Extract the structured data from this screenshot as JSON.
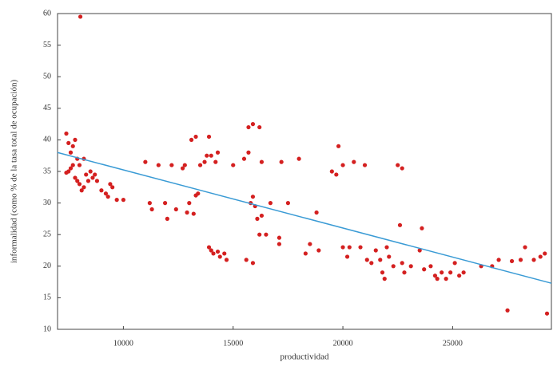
{
  "chart_data": {
    "type": "scatter",
    "x_label": "productividad",
    "y_label": "informalidad (como % de la tasa total de ocupación)",
    "xlim": [
      7000,
      29500
    ],
    "ylim": [
      10,
      60
    ],
    "xticks": [
      10000,
      15000,
      20000,
      25000
    ],
    "yticks": [
      10,
      15,
      20,
      25,
      30,
      35,
      40,
      45,
      50,
      55,
      60
    ],
    "point_color": "#d42020",
    "x": [
      8040,
      7400,
      7500,
      7600,
      7700,
      7800,
      7900,
      7700,
      7500,
      7400,
      7600,
      7800,
      8000,
      8200,
      8400,
      8600,
      8700,
      8500,
      8800,
      8200,
      8000,
      8300,
      9000,
      9200,
      9400,
      9500,
      9300,
      9700,
      10000,
      8100,
      7900,
      11000,
      11200,
      11300,
      11600,
      11900,
      12000,
      12200,
      12400,
      12700,
      12800,
      12900,
      13000,
      13200,
      13300,
      13400,
      13100,
      13300,
      13500,
      13700,
      13800,
      13900,
      14000,
      14200,
      14300,
      13900,
      14000,
      14100,
      14300,
      14400,
      14600,
      14700,
      15000,
      15500,
      15700,
      15700,
      15900,
      16200,
      15600,
      15900,
      15800,
      15900,
      16000,
      16100,
      16300,
      16200,
      16300,
      16500,
      16700,
      17100,
      17100,
      17200,
      17500,
      18000,
      18300,
      18500,
      18800,
      18900,
      19500,
      19700,
      19800,
      20000,
      20000,
      20200,
      20300,
      20500,
      20800,
      21000,
      21100,
      21300,
      21500,
      21700,
      21800,
      21900,
      22000,
      22100,
      22300,
      22500,
      22700,
      22600,
      22700,
      22800,
      23100,
      23500,
      23600,
      23700,
      24000,
      24200,
      24300,
      24500,
      24700,
      24900,
      25100,
      25300,
      25500,
      26300,
      26800,
      27100,
      27500,
      28100,
      28300,
      28700,
      29000,
      29200,
      29300,
      27700
    ],
    "y": [
      59.5,
      41,
      39.5,
      38,
      39,
      40,
      37,
      36,
      35,
      34.8,
      35.5,
      34,
      33,
      32.5,
      33.5,
      34,
      34.5,
      35,
      33.5,
      37,
      36,
      34.5,
      32,
      31.5,
      33,
      32.5,
      31,
      30.5,
      30.5,
      32,
      33.5,
      36.5,
      30,
      29,
      36,
      30,
      27.5,
      36,
      29,
      35.5,
      36,
      28.5,
      30,
      28.3,
      31.2,
      31.5,
      40,
      40.5,
      36,
      36.5,
      37.5,
      40.5,
      37.5,
      36.5,
      38,
      23,
      22.5,
      22,
      22.3,
      21.5,
      22,
      21,
      36,
      37,
      38,
      42,
      42.5,
      42,
      21,
      20.5,
      30,
      31,
      29.5,
      27.5,
      28,
      25,
      36.5,
      25,
      30,
      24.5,
      23.5,
      36.5,
      30,
      37,
      22,
      23.5,
      28.5,
      22.5,
      35,
      34.5,
      39,
      36,
      23,
      21.5,
      23,
      36.5,
      23,
      36,
      21,
      20.5,
      22.5,
      21,
      19,
      18,
      23,
      21.5,
      20,
      36,
      35.5,
      26.5,
      20.5,
      19,
      20,
      22.5,
      26,
      19.5,
      20,
      18.5,
      18,
      19,
      18,
      19,
      20.5,
      18.5,
      19,
      20,
      20,
      21,
      13,
      21,
      23,
      21,
      21.5,
      22,
      12.5,
      20.8
    ],
    "fit_line": {
      "color": "#3a9bd5",
      "x": [
        7000,
        29500
      ],
      "y": [
        38,
        17.3
      ]
    }
  }
}
